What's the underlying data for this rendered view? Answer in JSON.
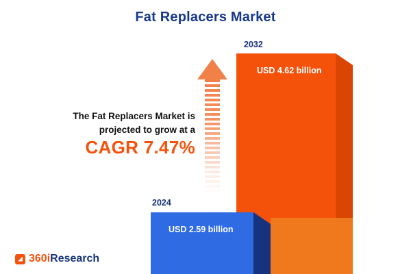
{
  "title": "Fat Replacers Market",
  "description": {
    "line1": "The Fat Replacers Market is",
    "line2": "projected to grow at a",
    "cagr": "CAGR 7.47%"
  },
  "logo": {
    "prefix": "360i",
    "suffix": "Research"
  },
  "colors": {
    "accent_orange": "#F4520B",
    "navy": "#17337F",
    "bar_blue": "#2F6BE3"
  },
  "chart_data": {
    "type": "bar",
    "title": "Fat Replacers Market",
    "categories": [
      "2024",
      "2032"
    ],
    "values": [
      2.59,
      4.62
    ],
    "unit": "USD billion",
    "value_labels": [
      "USD 2.59 billion",
      "USD 4.62 billion"
    ],
    "cagr_percent": 7.47,
    "bar_colors": [
      "#2F6BE3",
      "#F4520B"
    ],
    "legend": "none",
    "grid": false
  }
}
